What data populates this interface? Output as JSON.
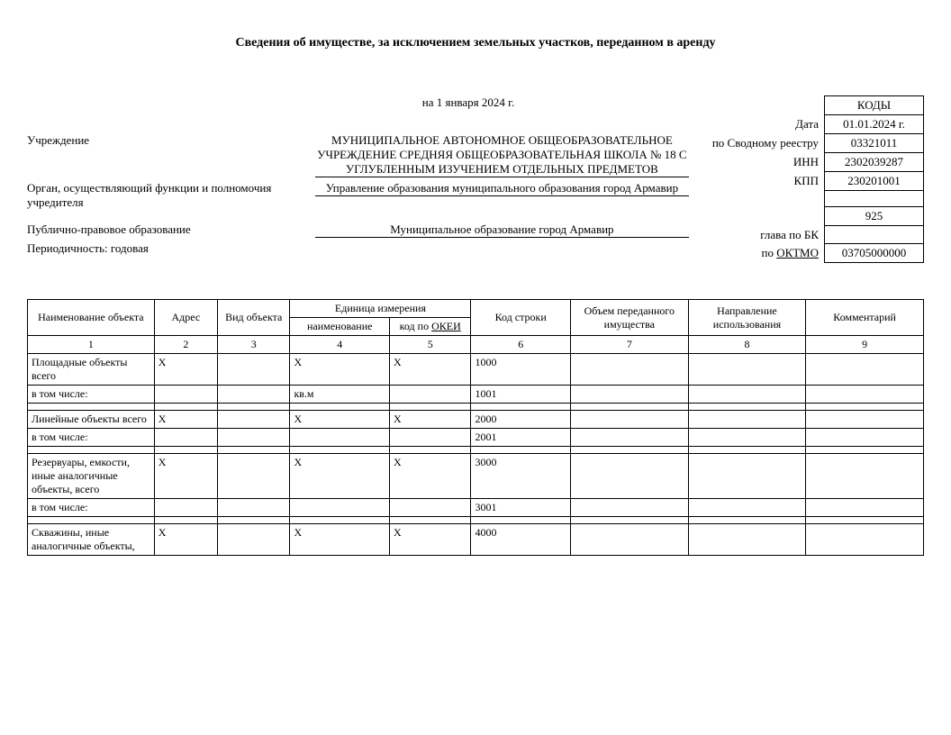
{
  "title": "Сведения об имуществе, за исключением земельных участков, переданном в аренду",
  "date_line": "на 1 января 2024 г.",
  "labels": {
    "institution": "Учреждение",
    "founder": "Орган, осуществляющий функции и полномочия учредителя",
    "public_entity": "Публично-правовое образование",
    "periodicity_label": "Периодичность:",
    "periodicity_value": "годовая"
  },
  "values": {
    "institution": "МУНИЦИПАЛЬНОЕ АВТОНОМНОЕ ОБЩЕОБРАЗОВАТЕЛЬНОЕ УЧРЕЖДЕНИЕ СРЕДНЯЯ ОБЩЕОБРАЗОВАТЕЛЬНАЯ ШКОЛА № 18 С УГЛУБЛЕННЫМ ИЗУЧЕНИЕМ ОТДЕЛЬНЫХ ПРЕДМЕТОВ",
    "founder": "Управление образования муниципального образования город Армавир",
    "public_entity": "Муниципальное образование город Армавир"
  },
  "codes": {
    "header": "КОДЫ",
    "rows": [
      {
        "label": "Дата",
        "value": "01.01.2024 г."
      },
      {
        "label": "по Сводному реестру",
        "value": "03321011"
      },
      {
        "label": "ИНН",
        "value": "2302039287"
      },
      {
        "label": "КПП",
        "value": "230201001"
      },
      {
        "label": "",
        "value": ""
      },
      {
        "label": "",
        "value": "925"
      },
      {
        "label": "глава по БК",
        "value": ""
      },
      {
        "label": "по ОКТМО",
        "value": "03705000000",
        "label_underline": true
      }
    ]
  },
  "table": {
    "headers": {
      "name": "Наименование объекта",
      "address": "Адрес",
      "kind": "Вид объекта",
      "unit_group": "Единица измерения",
      "unit_name": "наименование",
      "unit_code_pre": "код по ",
      "unit_code_link": "ОКЕИ",
      "row_code": "Код строки",
      "volume": "Объем переданного имущества",
      "direction": "Направление использования",
      "comment": "Комментарий"
    },
    "colnums": [
      "1",
      "2",
      "3",
      "4",
      "5",
      "6",
      "7",
      "8",
      "9"
    ],
    "colwidths": [
      "140px",
      "70px",
      "80px",
      "110px",
      "90px",
      "110px",
      "130px",
      "130px",
      "130px"
    ],
    "rows": [
      {
        "cells": [
          "Площадные объекты всего",
          "X",
          "",
          "X",
          "X",
          "1000",
          "",
          "",
          ""
        ]
      },
      {
        "cells": [
          "в том числе:",
          "",
          "",
          "кв.м",
          "",
          "1001",
          "",
          "",
          ""
        ]
      },
      {
        "spacer": true
      },
      {
        "cells": [
          "Линейные объекты всего",
          "X",
          "",
          "X",
          "X",
          "2000",
          "",
          "",
          ""
        ]
      },
      {
        "cells": [
          "в том числе:",
          "",
          "",
          "",
          "",
          "2001",
          "",
          "",
          ""
        ]
      },
      {
        "spacer": true
      },
      {
        "cells": [
          "Резервуары, емкости, иные аналогичные объекты, всего",
          "X",
          "",
          "X",
          "X",
          "3000",
          "",
          "",
          ""
        ]
      },
      {
        "cells": [
          "в том числе:",
          "",
          "",
          "",
          "",
          "3001",
          "",
          "",
          ""
        ]
      },
      {
        "spacer": true
      },
      {
        "cells": [
          "Скважины, иные аналогичные объекты,",
          "X",
          "",
          "X",
          "X",
          "4000",
          "",
          "",
          ""
        ]
      }
    ]
  }
}
